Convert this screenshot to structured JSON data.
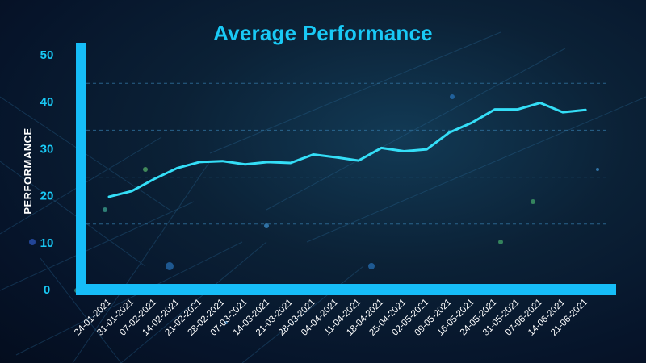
{
  "chart_data": {
    "type": "line",
    "title": "Average Performance",
    "xlabel": "",
    "ylabel": "PERFORMANCE",
    "ylim": [
      0,
      50
    ],
    "yticks": [
      0,
      10,
      20,
      30,
      40,
      50
    ],
    "grid": true,
    "categories": [
      "24-01-2021",
      "31-01-2021",
      "07-02-2021",
      "14-02-2021",
      "21-02-2021",
      "28-02-2021",
      "07-03-2021",
      "14-03-2021",
      "21-03-2021",
      "28-03-2021",
      "04-04-2021",
      "11-04-2021",
      "18-04-2021",
      "25-04-2021",
      "02-05-2021",
      "09-05-2021",
      "16-05-2021",
      "24-05-2021",
      "31-05-2021",
      "07-06-2021",
      "14-06-2021",
      "21-06-2021"
    ],
    "series": [
      {
        "values": [
          19.6,
          20.8,
          23.4,
          25.7,
          27.0,
          27.2,
          26.5,
          27.0,
          26.8,
          28.6,
          28.0,
          27.3,
          30.0,
          29.3,
          29.7,
          33.3,
          35.4,
          38.2,
          38.2,
          39.6,
          37.6,
          38.1
        ]
      }
    ],
    "colors": {
      "line": "#34def7",
      "axis": "#16bdf8",
      "title": "#19c9f5",
      "ticks": "#19c9f5",
      "xticks": "#ffffff",
      "grid": "#2f6f9a"
    }
  }
}
